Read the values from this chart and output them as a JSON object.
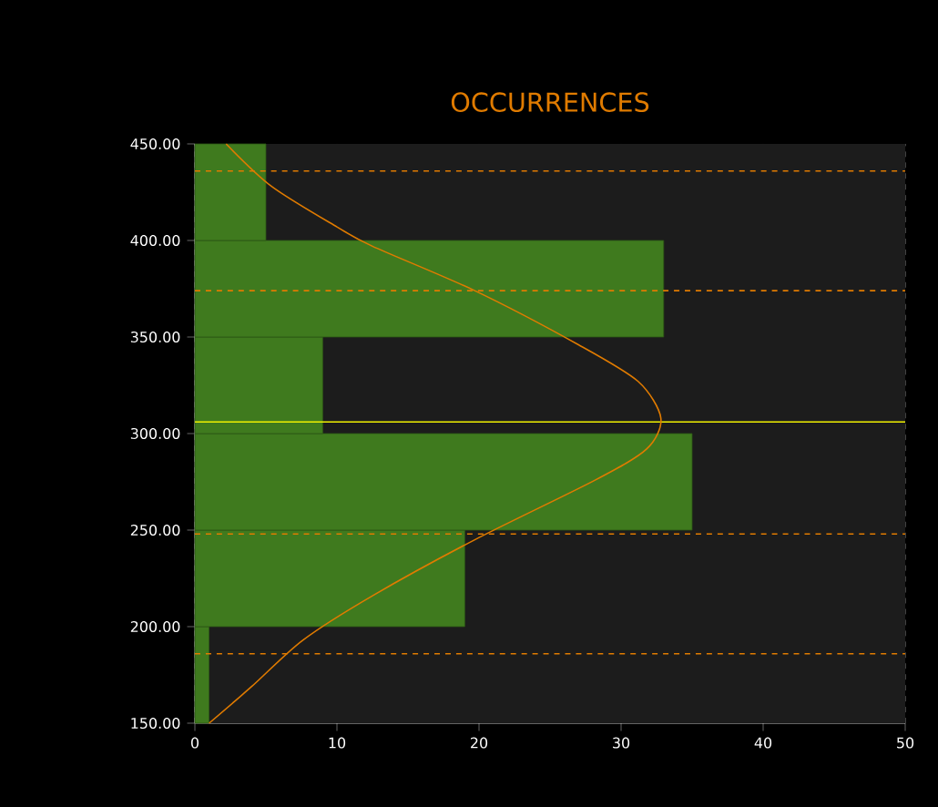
{
  "chart_data": {
    "type": "histogram",
    "title": "OCCURRENCES",
    "orientation": "horizontal",
    "bins": [
      150,
      200,
      250,
      300,
      350,
      400,
      450
    ],
    "values": [
      1,
      19,
      35,
      9,
      33,
      5
    ],
    "color": "#3f7a1e",
    "series": [
      {
        "type": "line",
        "color": "#e07b00",
        "values": [
          1,
          4,
          7.6,
          12.5,
          19.7,
          28.2,
          31.8,
          32.8,
          31.2,
          27,
          19.7,
          12.5,
          10,
          5.4,
          2.2
        ],
        "x": [
          150,
          169,
          193,
          216,
          245,
          276,
          292,
          308,
          327,
          346,
          374,
          397,
          407,
          428,
          450
        ]
      }
    ],
    "ref_lines": [
      {
        "axis": "y",
        "value": 306,
        "color": "#f0f000",
        "line_style": "solid"
      },
      {
        "axis": "y",
        "value": 186,
        "color": "#e07b00",
        "line_style": "dashed"
      },
      {
        "axis": "y",
        "value": 248,
        "color": "#e07b00",
        "line_style": "dashed"
      },
      {
        "axis": "y",
        "value": 374,
        "color": "#e07b00",
        "line_style": "dashed"
      },
      {
        "axis": "y",
        "value": 436,
        "color": "#e07b00",
        "line_style": "dashed"
      }
    ],
    "xlim": [
      0,
      50
    ],
    "ylim": [
      150,
      450
    ],
    "xticks": [
      0,
      10,
      20,
      30,
      40,
      50
    ],
    "yticks": [
      {
        "value": 150,
        "label": "150.00"
      },
      {
        "value": 200,
        "label": "200.00"
      },
      {
        "value": 250,
        "label": "250.00"
      },
      {
        "value": 300,
        "label": "300.00"
      },
      {
        "value": 350,
        "label": "350.00"
      },
      {
        "value": 400,
        "label": "400.00"
      },
      {
        "value": 450,
        "label": "450.00"
      }
    ],
    "grid": "x"
  }
}
